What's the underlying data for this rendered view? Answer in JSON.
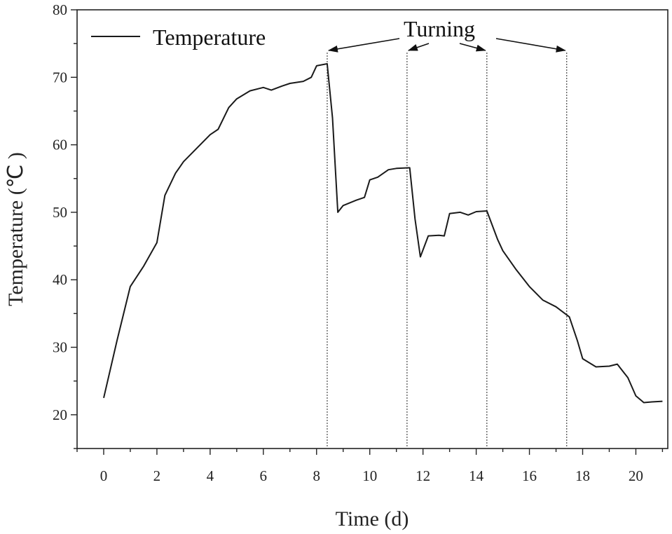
{
  "chart_data": {
    "type": "line",
    "xlabel": "Time (d)",
    "ylabel": "Temperature (℃ )",
    "xlim": [
      -1,
      21.2
    ],
    "ylim": [
      15,
      80
    ],
    "x_ticks": [
      0,
      2,
      4,
      6,
      8,
      10,
      12,
      14,
      16,
      18,
      20
    ],
    "y_ticks": [
      20,
      30,
      40,
      50,
      60,
      70,
      80
    ],
    "grid": false,
    "legend": {
      "position": "top-left",
      "entries": [
        "Temperature"
      ]
    },
    "series": [
      {
        "name": "Temperature",
        "color": "#1a1a1a",
        "points": [
          [
            0,
            22.5
          ],
          [
            0.5,
            31
          ],
          [
            1,
            39
          ],
          [
            1.5,
            42
          ],
          [
            2,
            45.5
          ],
          [
            2.3,
            52.5
          ],
          [
            2.7,
            55.8
          ],
          [
            3,
            57.5
          ],
          [
            3.5,
            59.5
          ],
          [
            4,
            61.5
          ],
          [
            4.3,
            62.3
          ],
          [
            4.7,
            65.5
          ],
          [
            5,
            66.8
          ],
          [
            5.5,
            68
          ],
          [
            6,
            68.5
          ],
          [
            6.3,
            68.1
          ],
          [
            6.7,
            68.7
          ],
          [
            7,
            69.1
          ],
          [
            7.5,
            69.4
          ],
          [
            7.8,
            70
          ],
          [
            8,
            71.7
          ],
          [
            8.4,
            72
          ],
          [
            8.6,
            64
          ],
          [
            8.8,
            50
          ],
          [
            9,
            51
          ],
          [
            9.5,
            51.8
          ],
          [
            9.8,
            52.2
          ],
          [
            10,
            54.8
          ],
          [
            10.3,
            55.2
          ],
          [
            10.7,
            56.3
          ],
          [
            11,
            56.5
          ],
          [
            11.5,
            56.6
          ],
          [
            11.7,
            49
          ],
          [
            11.9,
            43.4
          ],
          [
            12.2,
            46.5
          ],
          [
            12.6,
            46.6
          ],
          [
            12.8,
            46.5
          ],
          [
            13,
            49.8
          ],
          [
            13.4,
            50
          ],
          [
            13.7,
            49.6
          ],
          [
            14,
            50.1
          ],
          [
            14.4,
            50.2
          ],
          [
            14.8,
            46
          ],
          [
            15,
            44.3
          ],
          [
            15.5,
            41.5
          ],
          [
            16,
            39
          ],
          [
            16.5,
            37
          ],
          [
            17,
            36
          ],
          [
            17.5,
            34.5
          ],
          [
            17.8,
            31
          ],
          [
            18,
            28.3
          ],
          [
            18.5,
            27.1
          ],
          [
            19,
            27.2
          ],
          [
            19.3,
            27.5
          ],
          [
            19.7,
            25.5
          ],
          [
            20,
            22.8
          ],
          [
            20.3,
            21.8
          ],
          [
            20.6,
            21.9
          ],
          [
            21,
            22
          ]
        ]
      }
    ],
    "turning_days": [
      8.4,
      11.4,
      14.4,
      17.4
    ],
    "annotation": {
      "text": "Turning",
      "target_days": [
        8.4,
        11.4,
        14.4,
        17.4
      ]
    }
  }
}
